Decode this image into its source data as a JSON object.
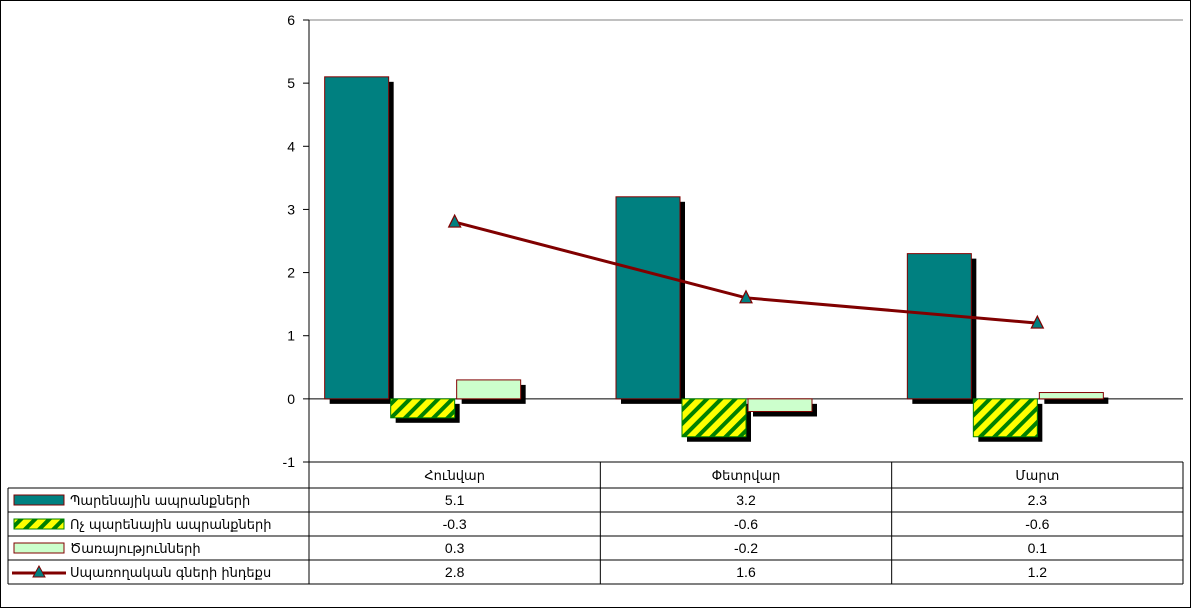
{
  "chart_data": {
    "type": "bar",
    "categories": [
      "Հունվար",
      "Փետրվար",
      "Մարտ"
    ],
    "series": [
      {
        "name": "Պարենային ապրանքների",
        "kind": "bar",
        "pattern": "solid",
        "color": "#008080",
        "values": [
          5.1,
          3.2,
          2.3
        ]
      },
      {
        "name": "Ոչ պարենային ապրանքների",
        "kind": "bar",
        "pattern": "yellow-green-stripes",
        "color": "#FFFF00",
        "values": [
          -0.3,
          -0.6,
          -0.6
        ]
      },
      {
        "name": "Ծառայությունների",
        "kind": "bar",
        "pattern": "solid",
        "color": "#CCFFCC",
        "values": [
          0.3,
          -0.2,
          0.1
        ]
      },
      {
        "name": "Սպառողական գների ինդեքս",
        "kind": "line",
        "marker": "triangle",
        "color": "#800000",
        "values": [
          2.8,
          1.6,
          1.2
        ]
      }
    ],
    "table_values": [
      [
        "5.1",
        "3.2",
        "2.3"
      ],
      [
        "-0.3",
        "-0.6",
        "-0.6"
      ],
      [
        "0.3",
        "-0.2",
        "0.1"
      ],
      [
        "2.8",
        "1.6",
        "1.2"
      ]
    ],
    "ylim": [
      -1,
      6
    ],
    "yticks": [
      -1,
      0,
      1,
      2,
      3,
      4,
      5,
      6
    ],
    "grid": true,
    "legend": "data-table-left",
    "colors": {
      "bar_border": "#800000",
      "shadow": "#000000",
      "stripe": "#008000",
      "line": "#800000",
      "marker": "#008080"
    }
  }
}
